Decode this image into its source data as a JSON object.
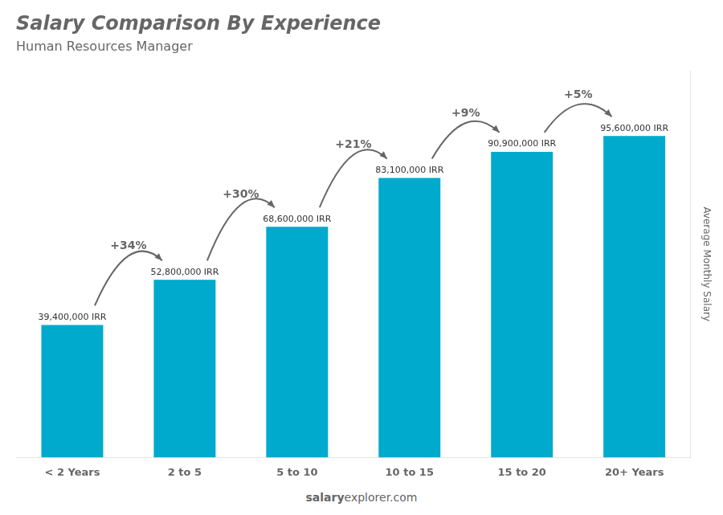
{
  "chart_data": {
    "type": "bar",
    "title": "Salary Comparison By Experience",
    "subtitle": "Human Resources Manager",
    "categories": [
      "< 2 Years",
      "2 to 5",
      "5 to 10",
      "10 to 15",
      "15 to 20",
      "20+ Years"
    ],
    "values": [
      39400000,
      52800000,
      68600000,
      83100000,
      90900000,
      95600000
    ],
    "value_labels": [
      "39,400,000 IRR",
      "52,800,000 IRR",
      "68,600,000 IRR",
      "83,100,000 IRR",
      "90,900,000 IRR",
      "95,600,000 IRR"
    ],
    "data_labels": true,
    "annotations": [
      "+34%",
      "+30%",
      "+21%",
      "+9%",
      "+5%"
    ],
    "ylabel": "Average Monthly Salary",
    "footer": [
      "salary",
      "explorer.com"
    ],
    "color": "#00aacc",
    "ylim": [
      0,
      115000000
    ],
    "grid": false,
    "tick_labels": "x"
  }
}
